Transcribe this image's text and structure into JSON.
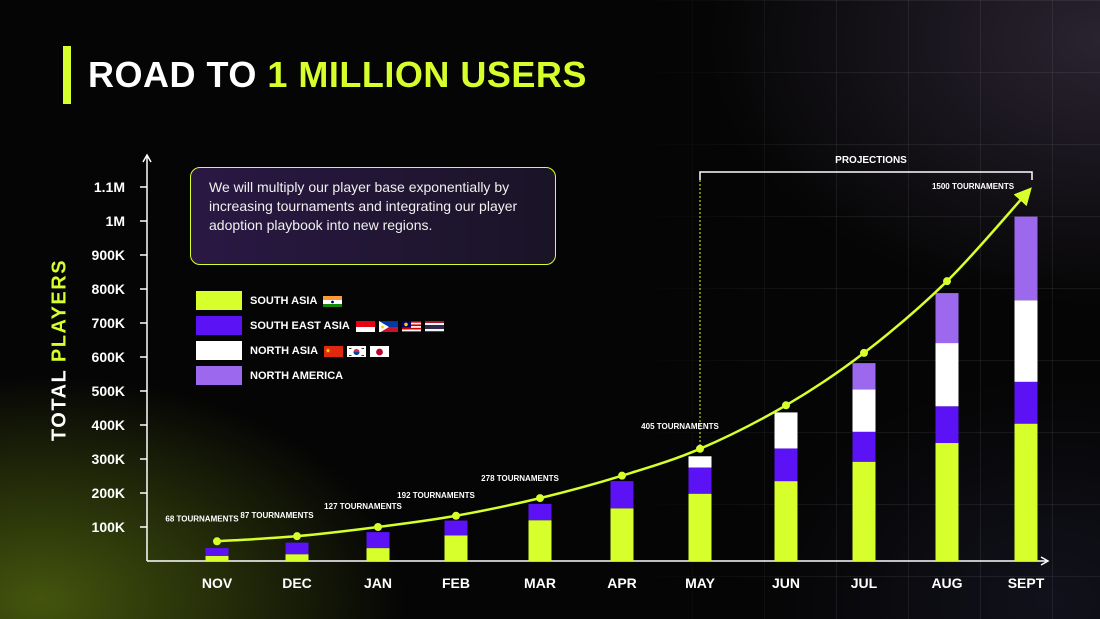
{
  "title": {
    "prefix": "ROAD TO ",
    "accent": "1 MILLION USERS"
  },
  "callout": {
    "text": "We will multiply our player base exponentially by increasing tournaments and integrating our player adoption playbook into new regions."
  },
  "y_axis_title": {
    "prefix": "TOTAL ",
    "accent": "PLAYERS"
  },
  "projections_label": "PROJECTIONS",
  "colors": {
    "accent": "#d6ff2b",
    "south_asia": "#d6ff2b",
    "south_east_asia": "#5b12f5",
    "north_asia": "#ffffff",
    "north_america": "#9c68ee"
  },
  "legend": [
    {
      "label": "SOUTH ASIA",
      "color": "#d6ff2b",
      "flags": [
        "india-flag"
      ]
    },
    {
      "label": "SOUTH EAST ASIA",
      "color": "#5b12f5",
      "flags": [
        "indonesia-flag",
        "philippines-flag",
        "malaysia-flag",
        "thailand-flag"
      ]
    },
    {
      "label": "NORTH ASIA",
      "color": "#ffffff",
      "flags": [
        "china-flag",
        "south-korea-flag",
        "japan-flag"
      ]
    },
    {
      "label": "NORTH AMERICA",
      "color": "#9c68ee",
      "flags": []
    }
  ],
  "chart_data": {
    "type": "bar",
    "stacked": true,
    "categories": [
      "NOV",
      "DEC",
      "JAN",
      "FEB",
      "MAR",
      "APR",
      "MAY",
      "JUN",
      "JUL",
      "AUG",
      "SEPT"
    ],
    "y_ticks": [
      {
        "value": 100000,
        "label": "100K"
      },
      {
        "value": 200000,
        "label": "200K"
      },
      {
        "value": 300000,
        "label": "300K"
      },
      {
        "value": 400000,
        "label": "400K"
      },
      {
        "value": 500000,
        "label": "500K"
      },
      {
        "value": 600000,
        "label": "600K"
      },
      {
        "value": 700000,
        "label": "700K"
      },
      {
        "value": 800000,
        "label": "800K"
      },
      {
        "value": 900000,
        "label": "900K"
      },
      {
        "value": 1000000,
        "label": "1M"
      },
      {
        "value": 1100000,
        "label": "1.1M"
      }
    ],
    "ylim": [
      0,
      1200000
    ],
    "projection_start": "MAY",
    "series": [
      {
        "name": "SOUTH ASIA",
        "color": "#d6ff2b",
        "values": [
          15000,
          20000,
          38000,
          75000,
          120000,
          155000,
          198000,
          235000,
          292000,
          347000,
          404000
        ]
      },
      {
        "name": "SOUTH EAST ASIA",
        "color": "#5b12f5",
        "values": [
          23000,
          34000,
          47000,
          44000,
          48000,
          80000,
          77000,
          96000,
          88000,
          108000,
          123000
        ]
      },
      {
        "name": "NORTH ASIA",
        "color": "#ffffff",
        "values": [
          0,
          0,
          0,
          0,
          0,
          0,
          33000,
          106000,
          125000,
          186000,
          240000
        ]
      },
      {
        "name": "NORTH AMERICA",
        "color": "#9c68ee",
        "values": [
          0,
          0,
          0,
          0,
          0,
          0,
          0,
          0,
          77000,
          147000,
          246000
        ]
      }
    ],
    "trend_line": {
      "values": [
        58000,
        73000,
        100000,
        133000,
        185000,
        251000,
        330000,
        458000,
        612000,
        823000,
        1080000
      ],
      "labels": [
        "68 TOURNAMENTS",
        "87 TOURNAMENTS",
        "127 TOURNAMENTS",
        "192 TOURNAMENTS",
        "278 TOURNAMENTS",
        "",
        "405 TOURNAMENTS",
        "",
        "",
        "",
        "1500 TOURNAMENTS"
      ]
    }
  }
}
